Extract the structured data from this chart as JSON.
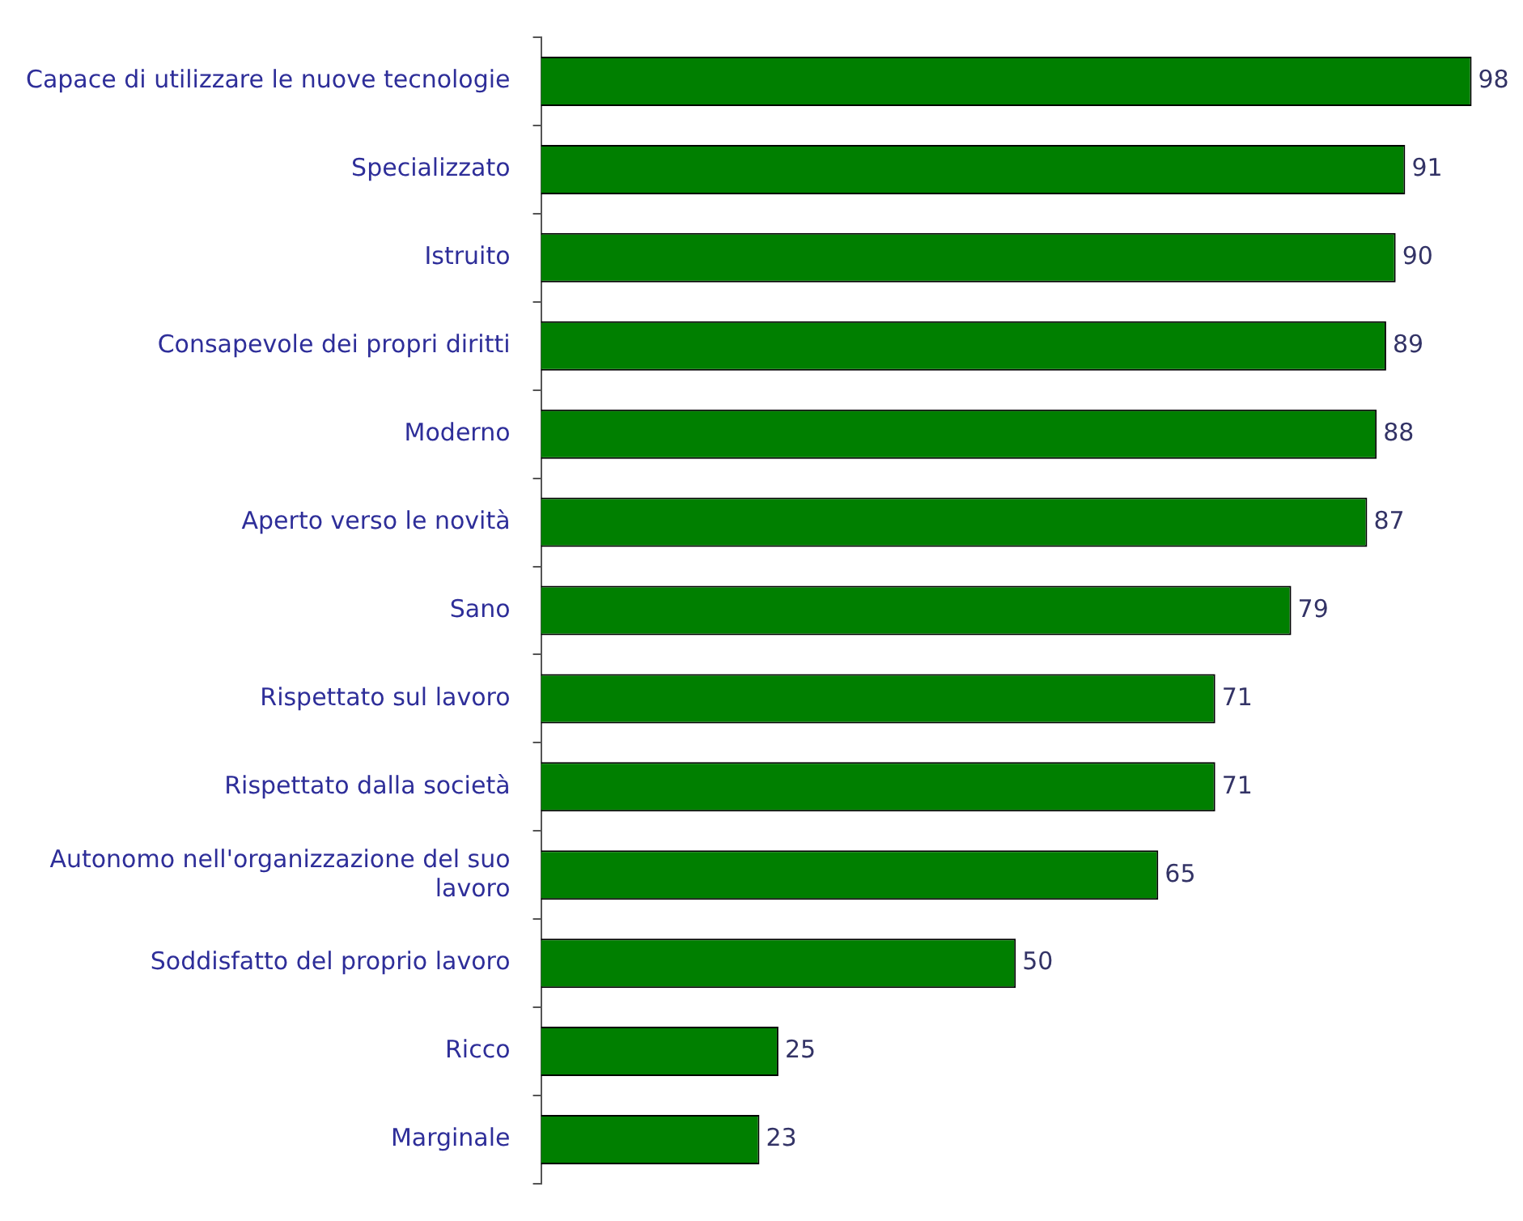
{
  "chart_data": {
    "type": "bar",
    "orientation": "horizontal",
    "categories": [
      "Capace di utilizzare le nuove tecnologie",
      "Specializzato",
      "Istruito",
      "Consapevole dei propri diritti",
      "Moderno",
      "Aperto verso le novità",
      "Sano",
      "Rispettato sul lavoro",
      "Rispettato dalla società",
      "Autonomo nell'organizzazione del suo lavoro",
      "Soddisfatto del proprio lavoro",
      "Ricco",
      "Marginale"
    ],
    "values": [
      98,
      91,
      90,
      89,
      88,
      87,
      79,
      71,
      71,
      65,
      50,
      25,
      23
    ],
    "color": "#007f00",
    "data_labels": true,
    "grid": false,
    "legend": false
  }
}
